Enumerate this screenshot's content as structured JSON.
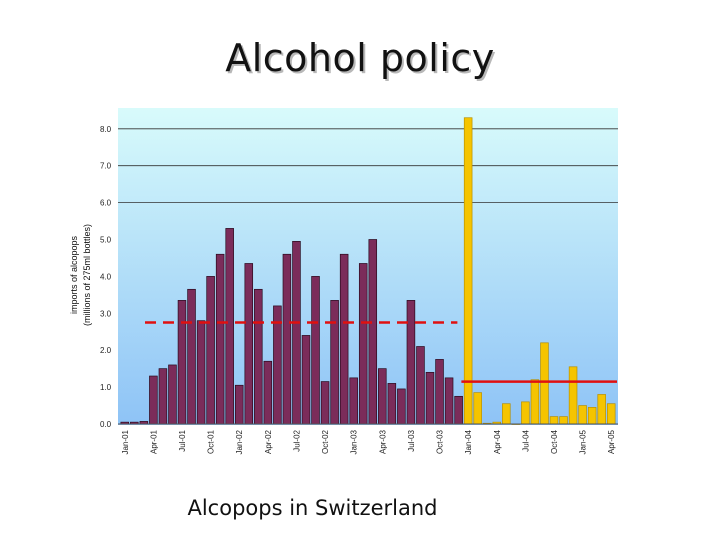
{
  "slide": {
    "title": "Alcohol policy",
    "subtitle": "Alcopops in Switzerland"
  },
  "chart_data": {
    "type": "bar",
    "ylabel_line1": "imports of alcopops",
    "ylabel_line2": "(millions of 275ml bottles)",
    "ylim": [
      0,
      8.5
    ],
    "yticks": [
      "0.0",
      "1.0",
      "2.0",
      "3.0",
      "4.0",
      "5.0",
      "6.0",
      "7.0",
      "8.0"
    ],
    "grid": "horizontal at 6.0, 7.0 and 8.0",
    "x_tick_labels": [
      "Jan-01",
      "Apr-01",
      "Jul-01",
      "Oct-01",
      "Jan-02",
      "Apr-02",
      "Jul-02",
      "Oct-02",
      "Jan-03",
      "Apr-03",
      "Jul-03",
      "Oct-03",
      "Jan-04",
      "Apr-04",
      "Jul-04",
      "Oct-04",
      "Jan-05",
      "Apr-05"
    ],
    "x_tick_every": 3,
    "colors": {
      "before_tax": "#7b2c5a",
      "after_tax": "#f5c400",
      "reference_line": "#e01010",
      "plot_top": "#d8fbfb",
      "plot_bottom": "#8ec3f6"
    },
    "series": [
      {
        "values": [
          0.05,
          0.05,
          0.07,
          1.3,
          1.5,
          1.6,
          3.35,
          3.65,
          2.8,
          4.0,
          4.6,
          5.3,
          1.05,
          4.35,
          3.65,
          1.7,
          3.2,
          4.6,
          4.95,
          2.4,
          4.0,
          1.15,
          3.35,
          4.6,
          1.25,
          4.35,
          5.0,
          1.5,
          1.1,
          0.95,
          3.35,
          2.1,
          1.4,
          1.75,
          1.25,
          0.75
        ]
      },
      {
        "values": [
          8.3,
          0.85,
          0.02,
          0.05,
          0.55,
          0.0,
          0.6,
          1.2,
          2.2,
          0.2,
          0.2,
          1.55,
          0.5,
          0.45,
          0.8,
          0.55
        ]
      }
    ],
    "reference_lines": [
      {
        "style": "dashed",
        "value": 2.75,
        "span": "before_tax"
      },
      {
        "style": "solid",
        "value": 1.15,
        "span": "after_tax"
      }
    ]
  }
}
